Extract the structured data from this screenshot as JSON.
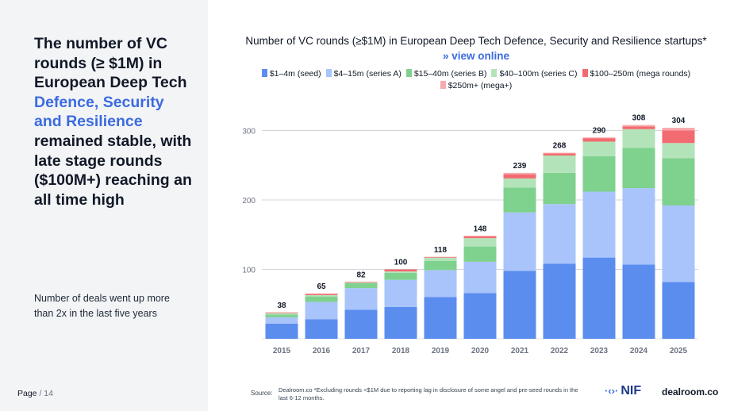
{
  "headline": {
    "part1": "The number of VC rounds (≥ $1M) in European Deep Tech ",
    "highlight": "Defence, Security and Resilience",
    "part2": " remained stable, with late stage rounds ($100M+) reaching an all time high"
  },
  "subtext": "Number of deals went up more than 2x in the last five years",
  "page": {
    "label": "Page",
    "separator": "/",
    "number": "14"
  },
  "chart_title": {
    "text": "Number of VC rounds (≥$1M) in European Deep Tech Defence, Security and Resilience startups*",
    "link_arrow": "»",
    "link_text": "view online"
  },
  "source": {
    "label": "Source:",
    "text": "Dealroom.co   *Excluding rounds <$1M due to reporting lag in disclosure of some angel and pre-seed rounds in the last 6-12 months."
  },
  "logos": {
    "nif": "NIF",
    "nif_arrows": "·‹›·",
    "dealroom": "dealroom.co"
  },
  "colors": {
    "highlight": "#3b6be0",
    "left_panel_bg": "#f3f4f6"
  },
  "chart_data": {
    "type": "bar",
    "stacked": true,
    "categories": [
      "2015",
      "2016",
      "2017",
      "2018",
      "2019",
      "2020",
      "2021",
      "2022",
      "2023",
      "2024",
      "2025"
    ],
    "totals": [
      38,
      65,
      82,
      100,
      118,
      148,
      239,
      268,
      290,
      308,
      304
    ],
    "series": [
      {
        "name": "$1–4m (seed)",
        "color": "#5b8def",
        "values": [
          22,
          28,
          42,
          46,
          60,
          66,
          98,
          108,
          117,
          107,
          82
        ]
      },
      {
        "name": "$4–15m (series A)",
        "color": "#a9c4fb",
        "values": [
          9,
          25,
          31,
          39,
          39,
          45,
          84,
          86,
          95,
          110,
          110
        ]
      },
      {
        "name": "$15–40m (series B)",
        "color": "#7fd18e",
        "values": [
          4,
          8,
          7,
          10,
          13,
          22,
          36,
          45,
          51,
          58,
          68
        ]
      },
      {
        "name": "$40–100m (series C)",
        "color": "#b3e3b9",
        "values": [
          2,
          2,
          1,
          2,
          5,
          12,
          13,
          25,
          21,
          27,
          22
        ]
      },
      {
        "name": "$100–250m (mega rounds)",
        "color": "#f26b70",
        "values": [
          1,
          2,
          1,
          3,
          1,
          3,
          6,
          3,
          5,
          4,
          18
        ]
      },
      {
        "name": "$250m+ (mega+)",
        "color": "#f8aaae",
        "values": [
          0,
          0,
          0,
          0,
          0,
          0,
          2,
          1,
          1,
          2,
          4
        ]
      }
    ],
    "yticks": [
      100,
      200,
      300
    ],
    "ylim": [
      0,
      300
    ],
    "grid": true,
    "legend_position": "top"
  }
}
